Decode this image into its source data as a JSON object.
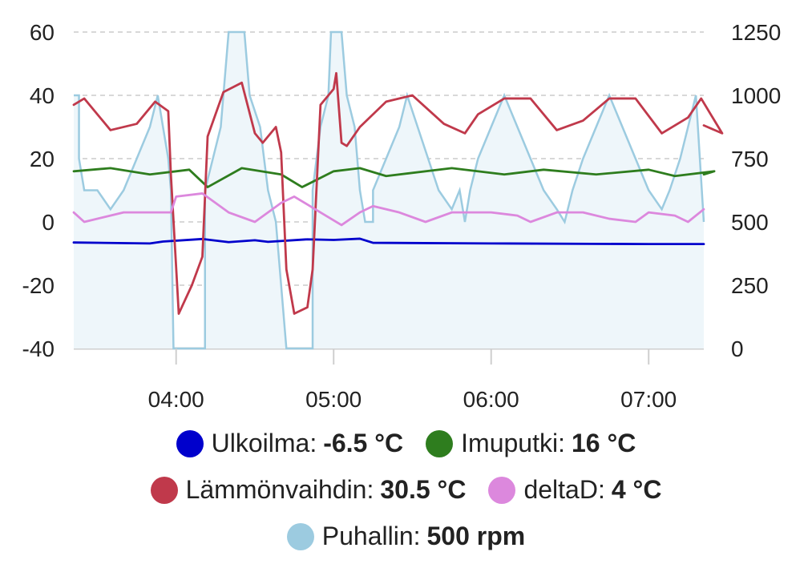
{
  "chart_data": {
    "type": "line",
    "x_range": [
      "03:21",
      "07:21"
    ],
    "x_ticks": [
      "04:00",
      "05:00",
      "06:00",
      "07:00"
    ],
    "y_left": {
      "ticks": [
        "60",
        "40",
        "20",
        "0",
        "-20",
        "-40"
      ],
      "min": -40,
      "max": 60
    },
    "y_right": {
      "ticks": [
        "1250",
        "1000",
        "750",
        "500",
        "250",
        "0"
      ],
      "min": 0,
      "max": 1250
    },
    "grid": true,
    "legend_position": "bottom",
    "series": [
      {
        "name": "Ulkoilma",
        "value_label": "-6.5 °C",
        "color": "#0000cc",
        "axis": "left",
        "style": "line",
        "points": [
          [
            "03:21",
            -6.5
          ],
          [
            "03:50",
            -6.8
          ],
          [
            "03:55",
            -6.2
          ],
          [
            "04:10",
            -5.4
          ],
          [
            "04:20",
            -6.4
          ],
          [
            "04:30",
            -5.8
          ],
          [
            "04:35",
            -6.3
          ],
          [
            "04:50",
            -5.5
          ],
          [
            "05:00",
            -5.7
          ],
          [
            "05:10",
            -5.3
          ],
          [
            "05:15",
            -6.6
          ],
          [
            "06:00",
            -6.8
          ],
          [
            "07:00",
            -7.0
          ],
          [
            "07:21",
            -7.0
          ]
        ]
      },
      {
        "name": "Imuputki",
        "value_label": "16 °C",
        "color": "#2e7d1e",
        "axis": "left",
        "style": "line",
        "points": [
          [
            "03:21",
            16
          ],
          [
            "03:35",
            17
          ],
          [
            "03:50",
            15
          ],
          [
            "04:00",
            16
          ],
          [
            "04:05",
            16.5
          ],
          [
            "04:12",
            11
          ],
          [
            "04:25",
            17
          ],
          [
            "04:40",
            15
          ],
          [
            "04:48",
            11
          ],
          [
            "05:00",
            16
          ],
          [
            "05:10",
            17
          ],
          [
            "05:20",
            14.5
          ],
          [
            "05:45",
            17
          ],
          [
            "06:05",
            15
          ],
          [
            "06:20",
            16.5
          ],
          [
            "06:40",
            15
          ],
          [
            "07:00",
            16.5
          ],
          [
            "07:10",
            14.5
          ],
          [
            "07:25",
            16
          ],
          [
            "07:21",
            15
          ]
        ]
      },
      {
        "name": "Lämmönvaihdin",
        "value_label": "30.5 °C",
        "color": "#c0394b",
        "axis": "left",
        "style": "line",
        "points": [
          [
            "03:21",
            37
          ],
          [
            "03:25",
            39
          ],
          [
            "03:35",
            29
          ],
          [
            "03:45",
            31
          ],
          [
            "03:52",
            38
          ],
          [
            "03:57",
            35
          ],
          [
            "03:58",
            15
          ],
          [
            "04:01",
            -29
          ],
          [
            "04:06",
            -20
          ],
          [
            "04:10",
            -11
          ],
          [
            "04:12",
            27
          ],
          [
            "04:18",
            41
          ],
          [
            "04:25",
            44
          ],
          [
            "04:30",
            28
          ],
          [
            "04:33",
            25
          ],
          [
            "04:38",
            30
          ],
          [
            "04:40",
            22
          ],
          [
            "04:42",
            -15
          ],
          [
            "04:45",
            -29
          ],
          [
            "04:50",
            -27
          ],
          [
            "04:52",
            -15
          ],
          [
            "04:55",
            37
          ],
          [
            "05:00",
            42
          ],
          [
            "05:01",
            47
          ],
          [
            "05:03",
            25
          ],
          [
            "05:05",
            24
          ],
          [
            "05:10",
            30
          ],
          [
            "05:20",
            38
          ],
          [
            "05:30",
            40
          ],
          [
            "05:42",
            31
          ],
          [
            "05:50",
            28
          ],
          [
            "05:55",
            34
          ],
          [
            "06:05",
            39
          ],
          [
            "06:15",
            39
          ],
          [
            "06:25",
            29
          ],
          [
            "06:35",
            32
          ],
          [
            "06:45",
            39
          ],
          [
            "06:55",
            39
          ],
          [
            "07:05",
            28
          ],
          [
            "07:15",
            33
          ],
          [
            "07:20",
            39
          ],
          [
            "07:28",
            28
          ],
          [
            "07:21",
            30.5
          ]
        ]
      },
      {
        "name": "deltaD",
        "value_label": "4 °C",
        "color": "#dc88dd",
        "axis": "left",
        "style": "line",
        "points": [
          [
            "03:21",
            3
          ],
          [
            "03:25",
            0
          ],
          [
            "03:40",
            3
          ],
          [
            "03:50",
            3
          ],
          [
            "03:58",
            3
          ],
          [
            "04:00",
            8
          ],
          [
            "04:10",
            9
          ],
          [
            "04:15",
            6
          ],
          [
            "04:20",
            3
          ],
          [
            "04:30",
            0
          ],
          [
            "04:40",
            6
          ],
          [
            "04:45",
            8
          ],
          [
            "04:55",
            3
          ],
          [
            "05:03",
            -1
          ],
          [
            "05:10",
            3
          ],
          [
            "05:15",
            5
          ],
          [
            "05:25",
            3
          ],
          [
            "05:35",
            0
          ],
          [
            "05:45",
            3
          ],
          [
            "06:00",
            3
          ],
          [
            "06:10",
            2
          ],
          [
            "06:15",
            0
          ],
          [
            "06:25",
            3
          ],
          [
            "06:35",
            3
          ],
          [
            "06:45",
            1
          ],
          [
            "06:55",
            0
          ],
          [
            "07:00",
            3
          ],
          [
            "07:10",
            2
          ],
          [
            "07:15",
            0
          ],
          [
            "07:21",
            4
          ]
        ]
      },
      {
        "name": "Puhallin",
        "value_label": "500 rpm",
        "color": "#9ccbe0",
        "axis": "right",
        "style": "step-area",
        "points": [
          [
            "03:21",
            1000
          ],
          [
            "03:23",
            1000
          ],
          [
            "03:23",
            750
          ],
          [
            "03:25",
            625
          ],
          [
            "03:30",
            625
          ],
          [
            "03:35",
            550
          ],
          [
            "03:40",
            625
          ],
          [
            "03:45",
            750
          ],
          [
            "03:50",
            875
          ],
          [
            "03:53",
            1000
          ],
          [
            "03:55",
            875
          ],
          [
            "03:57",
            750
          ],
          [
            "03:58",
            625
          ],
          [
            "03:59",
            0
          ],
          [
            "04:11",
            0
          ],
          [
            "04:11",
            625
          ],
          [
            "04:14",
            750
          ],
          [
            "04:17",
            875
          ],
          [
            "04:20",
            1250
          ],
          [
            "04:26",
            1250
          ],
          [
            "04:28",
            1000
          ],
          [
            "04:32",
            875
          ],
          [
            "04:35",
            625
          ],
          [
            "04:38",
            500
          ],
          [
            "04:42",
            0
          ],
          [
            "04:46",
            0
          ],
          [
            "04:52",
            0
          ],
          [
            "04:52",
            625
          ],
          [
            "04:55",
            875
          ],
          [
            "04:58",
            1000
          ],
          [
            "04:59",
            1250
          ],
          [
            "05:03",
            1250
          ],
          [
            "05:05",
            1000
          ],
          [
            "05:08",
            875
          ],
          [
            "05:10",
            625
          ],
          [
            "05:12",
            500
          ],
          [
            "05:15",
            500
          ],
          [
            "05:15",
            625
          ],
          [
            "05:20",
            750
          ],
          [
            "05:25",
            875
          ],
          [
            "05:28",
            1000
          ],
          [
            "05:32",
            875
          ],
          [
            "05:36",
            750
          ],
          [
            "05:40",
            625
          ],
          [
            "05:45",
            550
          ],
          [
            "05:48",
            625
          ],
          [
            "05:50",
            500
          ],
          [
            "05:52",
            625
          ],
          [
            "05:55",
            750
          ],
          [
            "06:00",
            875
          ],
          [
            "06:05",
            1000
          ],
          [
            "06:10",
            875
          ],
          [
            "06:15",
            750
          ],
          [
            "06:20",
            625
          ],
          [
            "06:25",
            550
          ],
          [
            "06:28",
            500
          ],
          [
            "06:31",
            625
          ],
          [
            "06:35",
            750
          ],
          [
            "06:40",
            875
          ],
          [
            "06:45",
            1000
          ],
          [
            "06:50",
            875
          ],
          [
            "06:55",
            750
          ],
          [
            "07:00",
            625
          ],
          [
            "07:05",
            550
          ],
          [
            "07:08",
            625
          ],
          [
            "07:12",
            750
          ],
          [
            "07:15",
            875
          ],
          [
            "07:18",
            1000
          ],
          [
            "07:21",
            500
          ]
        ]
      }
    ]
  }
}
